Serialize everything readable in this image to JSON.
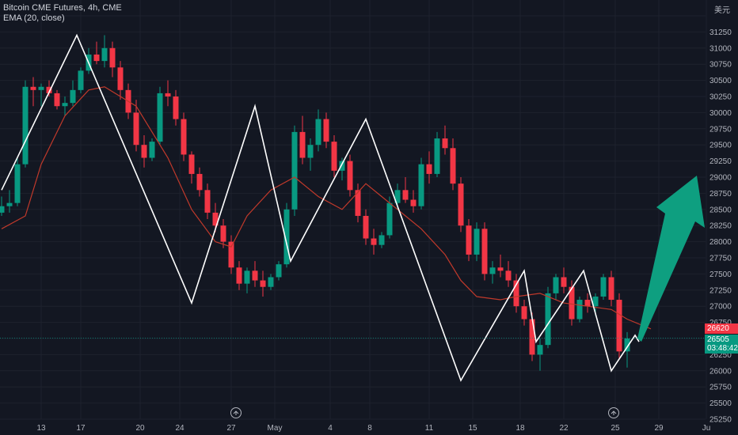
{
  "legend": {
    "symbol_line": "Bitcoin CME Futures, 4h, CME",
    "indicator_line": "EMA (20, close)"
  },
  "currency_label": "美元",
  "price_tags": {
    "ema_value": "26620",
    "last_price": "26505",
    "countdown": "03:48:42"
  },
  "colors": {
    "background": "#131722",
    "up": "#089981",
    "down": "#f23645",
    "ema": "#c0392b",
    "zigzag": "#ffffff",
    "arrow": "#0e9f80"
  },
  "icons": [
    "replay-icon-1",
    "replay-icon-2"
  ],
  "chart_data": {
    "type": "line",
    "title": "",
    "y_axis": {
      "min": 25250,
      "max": 31500,
      "ticks": [
        25250,
        25500,
        25750,
        26000,
        26250,
        26500,
        26750,
        27000,
        27250,
        27500,
        27750,
        28000,
        28250,
        28500,
        28750,
        29000,
        29250,
        29500,
        29750,
        30000,
        30250,
        30500,
        30750,
        31000,
        31250,
        31500
      ]
    },
    "x_axis": {
      "tick_labels": [
        "13",
        "17",
        "20",
        "24",
        "27",
        "May",
        "4",
        "8",
        "11",
        "15",
        "18",
        "22",
        "25",
        "29",
        "Ju"
      ],
      "tick_index": [
        5,
        10,
        17.5,
        22.5,
        29,
        34.5,
        41.5,
        46.5,
        54,
        59.5,
        65.5,
        71,
        77.5,
        83,
        89
      ]
    },
    "zigzag": {
      "name": "",
      "points": [
        [
          0,
          28800
        ],
        [
          9.5,
          31200
        ],
        [
          24,
          27050
        ],
        [
          32,
          30100
        ],
        [
          36.5,
          27700
        ],
        [
          46,
          29900
        ],
        [
          58,
          25850
        ],
        [
          66,
          27550
        ],
        [
          67.5,
          26450
        ],
        [
          73.5,
          27550
        ],
        [
          77,
          26000
        ],
        [
          80,
          26550
        ],
        [
          80.5,
          26450
        ]
      ]
    },
    "ema": {
      "name": "EMA (20, close)",
      "points": [
        [
          0,
          28200
        ],
        [
          3,
          28400
        ],
        [
          5,
          29200
        ],
        [
          8,
          29950
        ],
        [
          11,
          30350
        ],
        [
          13,
          30400
        ],
        [
          17,
          30100
        ],
        [
          21,
          29300
        ],
        [
          24,
          28500
        ],
        [
          27,
          28000
        ],
        [
          29,
          27920
        ],
        [
          31,
          28400
        ],
        [
          34,
          28800
        ],
        [
          37,
          29000
        ],
        [
          40,
          28700
        ],
        [
          43,
          28500
        ],
        [
          46,
          28900
        ],
        [
          48,
          28700
        ],
        [
          50,
          28500
        ],
        [
          53,
          28200
        ],
        [
          56,
          27800
        ],
        [
          58,
          27400
        ],
        [
          60,
          27150
        ],
        [
          63,
          27100
        ],
        [
          65,
          27150
        ],
        [
          68,
          27200
        ],
        [
          71,
          27050
        ],
        [
          74,
          27000
        ],
        [
          77,
          26950
        ],
        [
          79,
          26800
        ],
        [
          82,
          26650
        ]
      ]
    },
    "candles": [
      [
        28450,
        28700,
        28400,
        28550
      ],
      [
        28550,
        28800,
        28450,
        28600
      ],
      [
        28600,
        29300,
        28550,
        29200
      ],
      [
        29200,
        30500,
        29150,
        30400
      ],
      [
        30400,
        30550,
        30100,
        30350
      ],
      [
        30350,
        30450,
        30100,
        30400
      ],
      [
        30400,
        30500,
        30250,
        30300
      ],
      [
        30300,
        30350,
        30050,
        30100
      ],
      [
        30100,
        30250,
        29950,
        30150
      ],
      [
        30150,
        30500,
        30100,
        30350
      ],
      [
        30350,
        30700,
        30300,
        30650
      ],
      [
        30650,
        31000,
        30600,
        30900
      ],
      [
        30900,
        31100,
        30750,
        30800
      ],
      [
        30800,
        31200,
        30700,
        31000
      ],
      [
        31000,
        31100,
        30550,
        30700
      ],
      [
        30700,
        30800,
        30200,
        30350
      ],
      [
        30350,
        30450,
        29900,
        30000
      ],
      [
        30000,
        30200,
        29400,
        29500
      ],
      [
        29500,
        29650,
        29150,
        29300
      ],
      [
        29300,
        29600,
        29250,
        29550
      ],
      [
        29550,
        30400,
        29500,
        30300
      ],
      [
        30300,
        30500,
        30100,
        30250
      ],
      [
        30250,
        30350,
        29800,
        29900
      ],
      [
        29900,
        30000,
        29250,
        29350
      ],
      [
        29350,
        29400,
        28900,
        29050
      ],
      [
        29050,
        29150,
        28700,
        28800
      ],
      [
        28800,
        28900,
        28350,
        28450
      ],
      [
        28450,
        28600,
        28150,
        28250
      ],
      [
        28250,
        28350,
        27900,
        28000
      ],
      [
        28000,
        28100,
        27500,
        27600
      ],
      [
        27600,
        27700,
        27250,
        27350
      ],
      [
        27350,
        27600,
        27200,
        27550
      ],
      [
        27550,
        27700,
        27300,
        27400
      ],
      [
        27400,
        27550,
        27150,
        27300
      ],
      [
        27300,
        27500,
        27250,
        27450
      ],
      [
        27450,
        27700,
        27400,
        27650
      ],
      [
        27650,
        28600,
        27600,
        28500
      ],
      [
        28500,
        29800,
        28400,
        29700
      ],
      [
        29700,
        29950,
        29200,
        29300
      ],
      [
        29300,
        29600,
        29100,
        29500
      ],
      [
        29500,
        30050,
        29400,
        29900
      ],
      [
        29900,
        30000,
        29450,
        29550
      ],
      [
        29550,
        29650,
        29000,
        29100
      ],
      [
        29100,
        29300,
        28950,
        29250
      ],
      [
        29250,
        29350,
        28700,
        28800
      ],
      [
        28800,
        28900,
        28300,
        28400
      ],
      [
        28400,
        28500,
        27950,
        28050
      ],
      [
        28050,
        28200,
        27800,
        27950
      ],
      [
        27950,
        28150,
        27900,
        28100
      ],
      [
        28100,
        28700,
        28050,
        28600
      ],
      [
        28600,
        28900,
        28500,
        28800
      ],
      [
        28800,
        29000,
        28600,
        28650
      ],
      [
        28650,
        28800,
        28450,
        28550
      ],
      [
        28550,
        29300,
        28500,
        29200
      ],
      [
        29200,
        29400,
        28900,
        29050
      ],
      [
        29050,
        29700,
        29000,
        29600
      ],
      [
        29600,
        29800,
        29350,
        29450
      ],
      [
        29450,
        29600,
        28800,
        28900
      ],
      [
        28900,
        29000,
        28150,
        28250
      ],
      [
        28250,
        28350,
        27700,
        27800
      ],
      [
        27800,
        28300,
        27700,
        28200
      ],
      [
        28200,
        28300,
        27400,
        27500
      ],
      [
        27500,
        27700,
        27350,
        27600
      ],
      [
        27600,
        27800,
        27450,
        27550
      ],
      [
        27550,
        27700,
        27300,
        27400
      ],
      [
        27400,
        27500,
        26900,
        27000
      ],
      [
        27000,
        27100,
        26700,
        26800
      ],
      [
        26800,
        26900,
        26150,
        26250
      ],
      [
        26250,
        26500,
        26000,
        26400
      ],
      [
        26400,
        27300,
        26350,
        27200
      ],
      [
        27200,
        27500,
        27100,
        27450
      ],
      [
        27450,
        27600,
        27200,
        27300
      ],
      [
        27300,
        27400,
        26700,
        26800
      ],
      [
        26800,
        27150,
        26750,
        27100
      ],
      [
        27100,
        27200,
        26900,
        27000
      ],
      [
        27000,
        27200,
        26850,
        27150
      ],
      [
        27150,
        27500,
        27100,
        27450
      ],
      [
        27450,
        27550,
        27000,
        27100
      ],
      [
        27100,
        27200,
        26200,
        26300
      ],
      [
        26300,
        26600,
        26050,
        26500
      ]
    ]
  }
}
